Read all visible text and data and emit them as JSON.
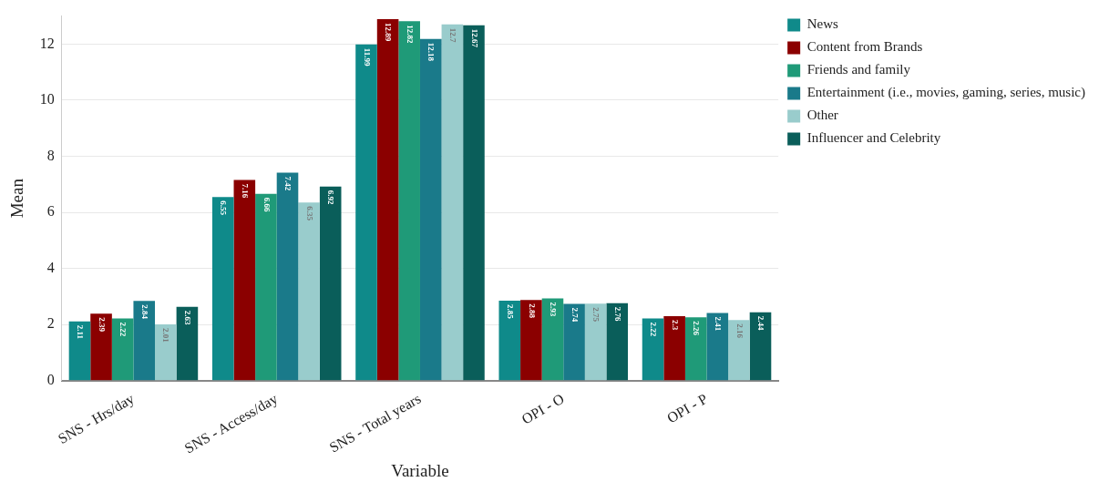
{
  "chart_data": {
    "type": "bar",
    "xlabel": "Variable",
    "ylabel": "Mean",
    "categories": [
      "SNS - Hrs/day",
      "SNS - Access/day",
      "SNS - Total years",
      "OPI - O",
      "OPI - P"
    ],
    "series": [
      {
        "name": "News",
        "color": "#0f8a8a",
        "values": [
          2.11,
          6.55,
          11.99,
          2.85,
          2.22
        ]
      },
      {
        "name": "Content from Brands",
        "color": "#8b0000",
        "values": [
          2.39,
          7.16,
          12.89,
          2.88,
          2.3
        ]
      },
      {
        "name": "Friends and family",
        "color": "#1f9a78",
        "values": [
          2.22,
          6.66,
          12.82,
          2.93,
          2.26
        ]
      },
      {
        "name": "Entertainment (i.e., movies, gaming, series, music)",
        "color": "#1a7a8a",
        "values": [
          2.84,
          7.42,
          12.18,
          2.74,
          2.41
        ]
      },
      {
        "name": "Other",
        "color": "#99cccc",
        "values": [
          2.01,
          6.35,
          12.7,
          2.75,
          2.16
        ]
      },
      {
        "name": "Influencer and Celebrity",
        "color": "#0a5e5a",
        "values": [
          2.63,
          6.92,
          12.67,
          2.76,
          2.44
        ]
      }
    ],
    "ylim": [
      0,
      13
    ],
    "yticks": [
      0,
      2,
      4,
      6,
      8,
      10,
      12
    ],
    "grid": "y",
    "legend": "right",
    "data_labels": true
  }
}
